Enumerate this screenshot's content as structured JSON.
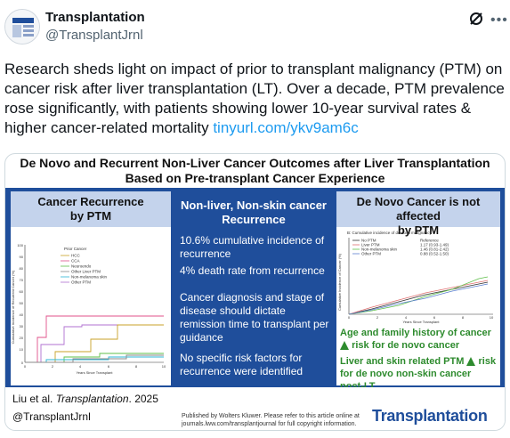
{
  "account": {
    "name": "Transplantation",
    "handle": "@TransplantJrnl"
  },
  "tweet": {
    "text": "Research sheds light on impact of prior to transplant malignancy (PTM) on cancer risk after liver transplantation (LT). Over a decade, PTM prevalence rose significantly, with patients showing lower 10-year survival rates & higher cancer-related mortality ",
    "link": "tinyurl.com/ykv9am6c"
  },
  "icons": {
    "grok": "grok-icon",
    "more": "more-icon",
    "avatar": "journal-avatar"
  },
  "infographic": {
    "title_line1": "De Novo and Recurrent Non-Liver Cancer Outcomes after Liver Transplantation",
    "title_line2": "Based on Pre-transplant Cancer Experience",
    "left_panel": {
      "head_line1": "Cancer Recurrence",
      "head_line2": "by PTM",
      "chart_ylabel": "Cumulative Incidence of Recurrent Cancer (%)",
      "chart_xlabel": "Years Since Transplant",
      "legend_title": "Prior Cancer",
      "legend": [
        "HCC",
        "CCA",
        "Neuroendo",
        "Other Liver PTM",
        "Non-melanoma skin",
        "Other PTM"
      ],
      "x_ticks": [
        "0",
        "2",
        "4",
        "6",
        "8",
        "10"
      ],
      "y_ticks": [
        "0",
        "10",
        "20",
        "30",
        "40",
        "50",
        "60",
        "70",
        "80",
        "90",
        "100"
      ]
    },
    "middle_panel": {
      "head_line1": "Non-liver, Non-skin cancer",
      "head_line2": "Recurrence",
      "p1": "10.6% cumulative incidence of recurrence",
      "p2": "4% death rate from recurrence",
      "p3": "Cancer diagnosis and stage of disease should dictate remission time to transplant per guidance",
      "p4": "No specific risk factors for recurrence were identified"
    },
    "right_panel": {
      "head_line1": "De Novo Cancer is not affected",
      "head_line2": "by PTM",
      "chart_title": "B: Cumulative incidence of de-novo malignancy",
      "chart_ylabel": "Cumulative Incidence of Cancer (%)",
      "chart_xlabel": "Years Since Transplant",
      "legend": [
        {
          "name": "No PTM",
          "hr": "Reference"
        },
        {
          "name": "Liver PTM",
          "hr": "1.17 (0.93-1.49)"
        },
        {
          "name": "Non-melanoma skin",
          "hr": "1.46 (0.81-2.42)"
        },
        {
          "name": "Other PTM",
          "hr": "0.88 (0.52-1.50)"
        }
      ],
      "x_ticks": [
        "0",
        "2",
        "4",
        "6",
        "8",
        "10"
      ],
      "g1a": "Age and family history of cancer",
      "g1b": "risk for de novo cancer",
      "g2a": "Liver and skin related PTM",
      "g2b": "risk",
      "g2c": "for de novo non-skin cancer",
      "g2d": "post-LT"
    },
    "footer": {
      "citation_author": "Liu et al. ",
      "citation_journal": "Transplantation",
      "citation_year": ". 2025",
      "handle": "@TransplantJrnl",
      "publisher_line1": "Published by Wolters Kluwer. Please refer to this article online at",
      "publisher_line2": "journals.lww.com/transplantjournal for full copyright information.",
      "logo": "Transplantation"
    }
  },
  "colors": {
    "blue_bar": "#1f4e9b",
    "panel_head": "#c4d3ec",
    "link": "#1d9bf0",
    "green": "#2e8b2e"
  }
}
